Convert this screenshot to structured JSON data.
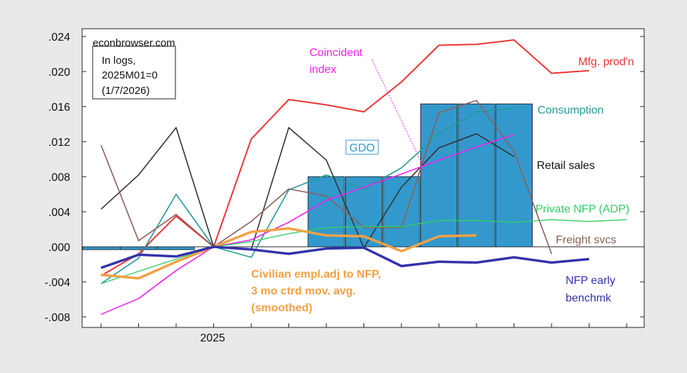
{
  "chart_data": {
    "type": "line",
    "note": [
      "econbrowser.com",
      "In logs,",
      "2025M01=0",
      "(1/7/2026)"
    ],
    "y_ticks": [
      ".024",
      ".020",
      ".016",
      ".012",
      ".008",
      ".004",
      ".000",
      "-.004",
      "-.008"
    ],
    "y_tick_values": [
      0.024,
      0.02,
      0.016,
      0.012,
      0.008,
      0.004,
      0.0,
      -0.004,
      -0.008
    ],
    "ylim": [
      -0.008,
      0.024
    ],
    "x_tick_label": "2025",
    "x_periods": [
      "2024M10",
      "2024M11",
      "2024M12",
      "2025M01",
      "2025M02",
      "2025M03",
      "2025M04",
      "2025M05",
      "2025M06",
      "2025M07",
      "2025M08",
      "2025M09",
      "2025M10",
      "2025M11",
      "2025M12"
    ],
    "bars": {
      "name": "GDO",
      "color": "#3399cc",
      "items": [
        {
          "start": 0,
          "end": 3,
          "value": -0.0002
        },
        {
          "start": 6,
          "end": 9,
          "value": 0.008
        },
        {
          "start": 9,
          "end": 12,
          "value": 0.0163
        }
      ]
    },
    "series": [
      {
        "name": "Mfg. prod'n",
        "color": "#ee3333",
        "width": 2,
        "values": [
          -0.0033,
          -0.0008,
          0.0035,
          0.0,
          0.0123,
          0.0168,
          0.0162,
          0.0154,
          0.0188,
          0.023,
          0.0231,
          0.0236,
          0.0198,
          0.0201,
          null
        ]
      },
      {
        "name": "Consumption",
        "color": "#229999",
        "width": 1.6,
        "values": [
          -0.0042,
          -0.0013,
          0.006,
          0.0,
          -0.0012,
          0.0065,
          0.0082,
          0.0066,
          0.009,
          0.0129,
          0.0154,
          0.0158,
          null,
          null,
          null
        ]
      },
      {
        "name": "Retail sales",
        "color": "#333333",
        "width": 1.6,
        "values": [
          0.0043,
          0.0082,
          0.0136,
          0.0,
          -0.0003,
          0.0136,
          0.0099,
          -0.0001,
          0.0068,
          0.0113,
          0.0129,
          0.0103,
          null,
          null,
          null
        ]
      },
      {
        "name": "Freight svcs",
        "color": "#8b5e57",
        "width": 1.6,
        "values": [
          0.0116,
          0.0007,
          0.0037,
          0.0,
          0.0029,
          0.0066,
          0.0058,
          0.0022,
          0.0022,
          0.0153,
          0.0167,
          0.0109,
          -0.0008,
          null,
          null
        ]
      },
      {
        "name": "Coincident index",
        "color": "#ee22ee",
        "width": 1.6,
        "values": [
          -0.0077,
          -0.0059,
          -0.0027,
          0.0,
          0.0008,
          0.0028,
          0.0053,
          0.0068,
          0.0083,
          0.0099,
          0.0114,
          0.0128,
          null,
          null,
          null
        ]
      },
      {
        "name": "Private NFP (ADP)",
        "color": "#33cc66",
        "width": 1.4,
        "values": [
          -0.0042,
          -0.0028,
          -0.0014,
          0.0,
          0.0006,
          0.0015,
          0.0022,
          0.0023,
          0.0023,
          0.003,
          0.003,
          0.0028,
          0.0031,
          0.0029,
          0.0031
        ]
      },
      {
        "name": "Civilian empl.adj to NFP, 3 mo ctrd mov. avg. (smoothed)",
        "color": "#f5a044",
        "width": 3.5,
        "values": [
          -0.0032,
          -0.0036,
          -0.0017,
          0.0,
          0.0017,
          0.0021,
          0.0013,
          0.0012,
          -0.0005,
          0.0012,
          0.0013,
          null,
          null,
          null,
          null
        ]
      },
      {
        "name": "NFP early benchmk",
        "color": "#3333aa",
        "width": 3.5,
        "values": [
          -0.0024,
          -0.0009,
          -0.0011,
          0.0,
          -0.0003,
          -0.0008,
          -0.0002,
          -0.0001,
          -0.0022,
          -0.0017,
          -0.0018,
          -0.0012,
          -0.0018,
          -0.0014,
          null
        ]
      }
    ],
    "labels": {
      "mfg": "Mfg. prod'n",
      "consumption": "Consumption",
      "retail": "Retail sales",
      "adp": "Private NFP (ADP)",
      "freight": "Freight svcs",
      "coincident_1": "Coincident",
      "coincident_2": "index",
      "gdo": "GDO",
      "civ_1": "Civilian empl.adj to NFP,",
      "civ_2": "3 mo ctrd mov. avg.",
      "civ_3": "(smoothed)",
      "nfp_1": "NFP early",
      "nfp_2": "benchmk"
    }
  }
}
